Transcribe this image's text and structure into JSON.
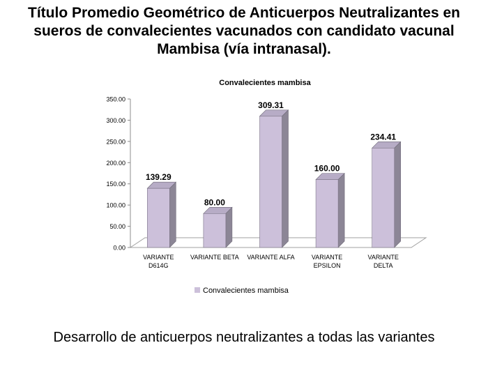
{
  "slide": {
    "title_lines": [
      "Título Promedio Geométrico de Anticuerpos Neutralizantes  en",
      "sueros de convalecientes vacunados con candidato vacunal",
      "Mambisa (vía intranasal)."
    ],
    "footer": "Desarrollo de anticuerpos neutralizantes a todas las variantes"
  },
  "chart_data": {
    "type": "bar",
    "style": "3d-column",
    "title": "Convalecientes mambisa",
    "xlabel": "",
    "ylabel": "",
    "categories": [
      [
        "VARIANTE",
        "D614G"
      ],
      [
        "VARIANTE BETA"
      ],
      [
        "VARIANTE ALFA"
      ],
      [
        "VARIANTE",
        "EPSILON"
      ],
      [
        "VARIANTE",
        "DELTA"
      ]
    ],
    "series": [
      {
        "name": "Convalecientes mambisa",
        "values": [
          139.29,
          80.0,
          309.31,
          160.0,
          234.41
        ],
        "labels": [
          "139.29",
          "80.00",
          "309.31",
          "160.00",
          "234.41"
        ],
        "color": "#CCC0DA"
      }
    ],
    "ylim": [
      0,
      350
    ],
    "yticks": [
      "0.00",
      "50.00",
      "100.00",
      "150.00",
      "200.00",
      "250.00",
      "300.00",
      "350.00"
    ],
    "legend": "bottom",
    "grid": false
  }
}
